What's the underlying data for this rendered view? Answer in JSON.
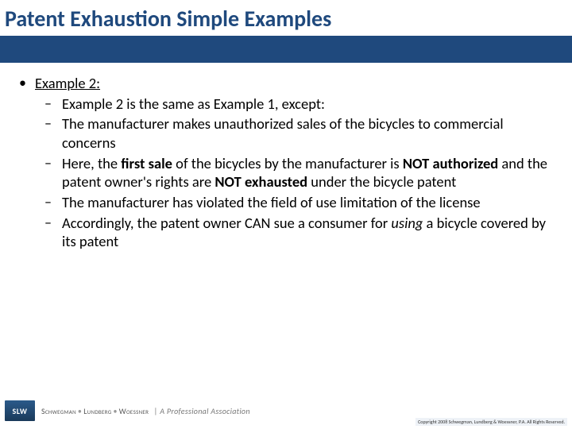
{
  "title": "Patent Exhaustion Simple Examples",
  "colors": {
    "brand": "#1f497d",
    "text": "#000000",
    "bg": "#ffffff"
  },
  "bullet": {
    "heading": "Example 2:",
    "items": [
      {
        "pre": "Example 2 is the same as Example 1, except:"
      },
      {
        "pre": "The manufacturer makes unauthorized sales of the bicycles to commercial concerns"
      },
      {
        "pre": "Here, the ",
        "b1": "first sale",
        "mid1": " of the bicycles by the manufacturer is ",
        "b2": "NOT authorized",
        "mid2": " and the patent owner's rights are ",
        "b3": "NOT exhausted",
        "post": " under the bicycle patent"
      },
      {
        "pre": "The manufacturer has violated the field of use limitation of the license"
      },
      {
        "pre": "Accordingly, the patent owner CAN sue a consumer for ",
        "i1": "using",
        "post": " a bicycle covered by its patent"
      }
    ]
  },
  "footer": {
    "logo_text": "SLW",
    "firm_a": "Schwegman",
    "firm_b": "Lundberg",
    "firm_c": "Woessner",
    "assoc": "| A Professional Association",
    "copyright": "Copyright 2008 Schwegman, Lundberg & Woessner, P.A. All Rights Reserved."
  }
}
